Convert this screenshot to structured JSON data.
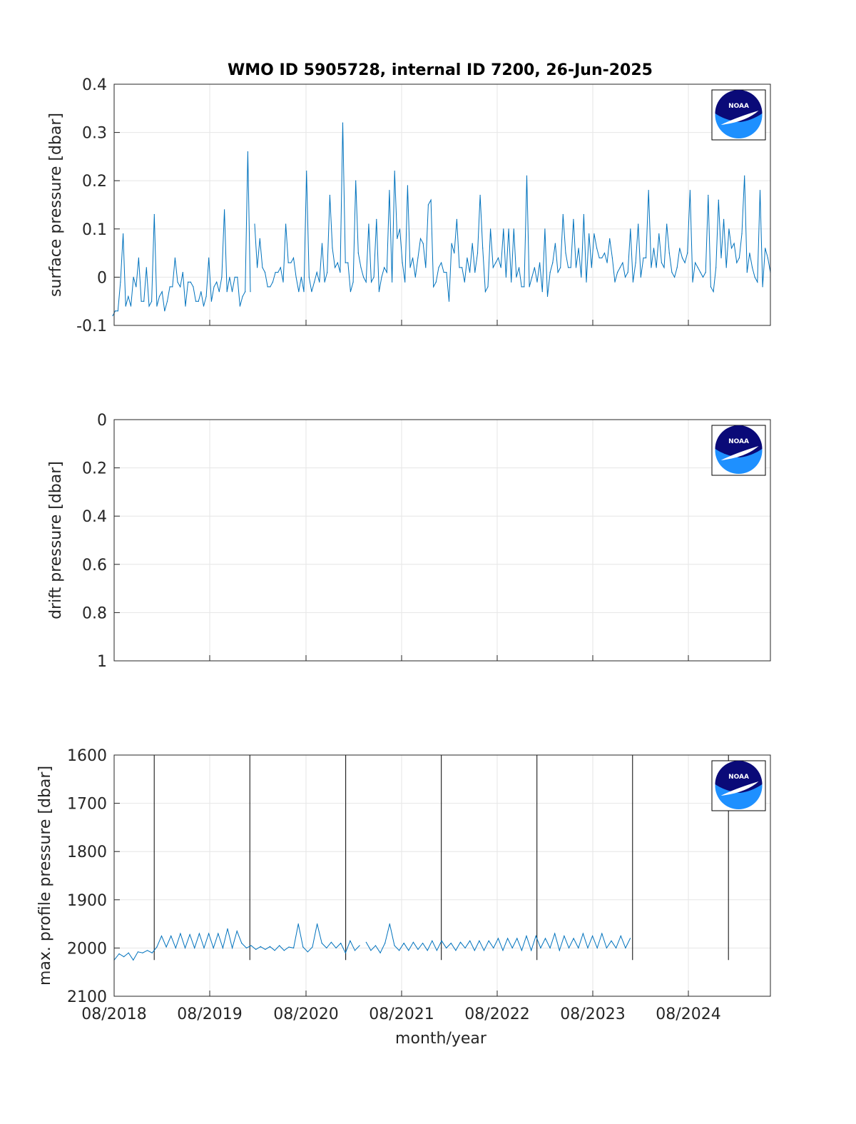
{
  "title": "WMO ID 5905728, internal ID 7200, 26-Jun-2025",
  "logo_text": "NOAA",
  "colors": {
    "series": "#0072BD",
    "axis": "#262626",
    "grid": "#e6e6e6",
    "vline": "#000000",
    "noaa_dark": "#0a0a78",
    "noaa_light": "#1e90ff"
  },
  "chart_data": [
    {
      "type": "line",
      "ylabel": "surface pressure [dbar]",
      "ylim": [
        -0.1,
        0.4
      ],
      "y_ticks": [
        "-0.1",
        "0",
        "0.1",
        "0.2",
        "0.3",
        "0.4"
      ],
      "y_tick_values": [
        -0.1,
        0,
        0.1,
        0.2,
        0.3,
        0.4
      ],
      "grid": true,
      "series": [
        {
          "segments": [
            [
              -0.08,
              -0.07,
              -0.07,
              -0.01,
              0.09,
              -0.06,
              -0.04,
              -0.06,
              0.0,
              -0.02,
              0.04,
              -0.05,
              -0.05,
              0.02,
              -0.06,
              -0.05,
              0.13,
              -0.06,
              -0.04,
              -0.03,
              -0.07,
              -0.05,
              -0.02,
              -0.02,
              0.04,
              -0.01,
              -0.02,
              0.01,
              -0.06,
              -0.01,
              -0.01,
              -0.02,
              -0.05,
              -0.05,
              -0.03,
              -0.06,
              -0.04,
              0.04,
              -0.05,
              -0.02,
              -0.01,
              -0.03,
              0.0,
              0.14,
              -0.03,
              0.0,
              -0.03,
              0.0,
              0.0,
              -0.06,
              -0.04,
              -0.03,
              0.26,
              -0.03
            ],
            [
              0.11,
              0.02,
              0.08,
              0.02,
              0.01,
              -0.02,
              -0.02,
              -0.01,
              0.01,
              0.01,
              0.02,
              -0.01,
              0.11,
              0.03,
              0.03,
              0.04,
              0.0,
              -0.03,
              0.0,
              -0.03,
              0.22,
              0.0,
              -0.03,
              -0.01,
              0.01,
              -0.01,
              0.07,
              -0.01,
              0.01,
              0.17,
              0.06,
              0.02,
              0.03,
              0.01,
              0.32,
              0.03,
              0.03,
              -0.03,
              -0.01,
              0.2,
              0.05,
              0.02,
              0.0,
              -0.01,
              0.11,
              -0.01,
              0.0,
              0.12,
              -0.03,
              0.0,
              0.02,
              0.01,
              0.18,
              -0.01,
              0.22,
              0.08,
              0.1,
              0.03,
              -0.01,
              0.19,
              0.02,
              0.04,
              0.0,
              0.04,
              0.08,
              0.07,
              0.02,
              0.15,
              0.16,
              -0.02,
              -0.01,
              0.02,
              0.03,
              0.01,
              0.01,
              -0.05,
              0.07,
              0.05,
              0.12,
              0.02,
              0.02,
              -0.01,
              0.04,
              0.01,
              0.07,
              0.01,
              0.05,
              0.17,
              0.06,
              -0.03,
              -0.02,
              0.1,
              0.02,
              0.03,
              0.04,
              0.02,
              0.1,
              0.0,
              0.1,
              -0.01,
              0.1,
              0.0,
              0.02,
              -0.02,
              -0.02,
              0.21,
              -0.02,
              0.0,
              0.02,
              -0.01,
              0.03,
              -0.03,
              0.1,
              -0.04,
              0.01,
              0.03,
              0.07,
              0.01,
              0.02,
              0.13,
              0.05,
              0.02,
              0.02,
              0.12,
              0.02,
              0.06,
              0.0,
              0.13,
              -0.01,
              0.09,
              0.02,
              0.09,
              0.06,
              0.04,
              0.04,
              0.05,
              0.03,
              0.08,
              0.04,
              -0.01,
              0.01,
              0.02,
              0.03,
              0.0,
              0.01,
              0.1,
              -0.01,
              0.03,
              0.11,
              0.0,
              0.04,
              0.04,
              0.18,
              0.02,
              0.06,
              0.02,
              0.09,
              0.03,
              0.02,
              0.11,
              0.05,
              0.01,
              0.0,
              0.02,
              0.06,
              0.04,
              0.03,
              0.05,
              0.18,
              -0.01,
              0.03,
              0.02,
              0.01,
              0.0,
              0.01,
              0.17,
              -0.02,
              -0.03,
              0.02,
              0.16,
              0.04,
              0.12,
              0.02,
              0.1,
              0.06,
              0.07,
              0.03,
              0.04,
              0.09,
              0.21,
              0.01,
              0.05,
              0.02,
              0.0,
              -0.01,
              0.18,
              -0.02,
              0.06,
              0.04,
              0.01
            ]
          ]
        }
      ]
    },
    {
      "type": "line",
      "ylabel": "drift pressure [dbar]",
      "ylim": [
        0,
        1
      ],
      "y_reversed": true,
      "y_ticks": [
        "0",
        "0.2",
        "0.4",
        "0.6",
        "0.8",
        "1"
      ],
      "y_tick_values": [
        0,
        0.2,
        0.4,
        0.6,
        0.8,
        1
      ],
      "grid": true,
      "series": []
    },
    {
      "type": "line",
      "ylabel": "max. profile pressure [dbar]",
      "xlabel": "month/year",
      "ylim": [
        1600,
        2100
      ],
      "y_reversed": true,
      "y_ticks": [
        "1600",
        "1700",
        "1800",
        "1900",
        "2000",
        "2100"
      ],
      "y_tick_values": [
        1600,
        1700,
        1800,
        1900,
        2000,
        2100
      ],
      "x_ticks": [
        "08/2018",
        "08/2019",
        "08/2020",
        "08/2021",
        "08/2022",
        "08/2023",
        "08/2024"
      ],
      "grid": true,
      "year_boundaries": [
        "01/2019",
        "01/2020",
        "01/2021",
        "01/2022",
        "01/2023",
        "01/2024",
        "01/2025"
      ],
      "series": [
        {
          "segments": [
            [
              {
                "x": "2018-08-01",
                "y": 2025
              },
              {
                "x": "2018-08-20",
                "y": 2012
              },
              {
                "x": "2018-09-07",
                "y": 2018
              },
              {
                "x": "2018-09-25",
                "y": 2010
              },
              {
                "x": "2018-10-13",
                "y": 2025
              },
              {
                "x": "2018-10-31",
                "y": 2008
              },
              {
                "x": "2018-11-18",
                "y": 2010
              },
              {
                "x": "2018-12-06",
                "y": 2005
              },
              {
                "x": "2018-12-24",
                "y": 2010
              },
              {
                "x": "2019-01-11",
                "y": 1998
              },
              {
                "x": "2019-01-29",
                "y": 1975
              },
              {
                "x": "2019-02-16",
                "y": 1998
              },
              {
                "x": "2019-03-06",
                "y": 1975
              },
              {
                "x": "2019-03-24",
                "y": 2000
              },
              {
                "x": "2019-04-11",
                "y": 1970
              },
              {
                "x": "2019-04-29",
                "y": 2000
              },
              {
                "x": "2019-05-17",
                "y": 1972
              },
              {
                "x": "2019-06-04",
                "y": 2000
              },
              {
                "x": "2019-06-22",
                "y": 1970
              },
              {
                "x": "2019-07-10",
                "y": 2000
              },
              {
                "x": "2019-07-28",
                "y": 1970
              },
              {
                "x": "2019-08-15",
                "y": 2000
              },
              {
                "x": "2019-09-02",
                "y": 1970
              },
              {
                "x": "2019-09-20",
                "y": 2000
              },
              {
                "x": "2019-10-08",
                "y": 1960
              },
              {
                "x": "2019-10-26",
                "y": 2000
              },
              {
                "x": "2019-11-13",
                "y": 1965
              },
              {
                "x": "2019-12-01",
                "y": 1990
              },
              {
                "x": "2019-12-19",
                "y": 2000
              },
              {
                "x": "2020-01-06",
                "y": 1995
              },
              {
                "x": "2020-01-24",
                "y": 2003
              },
              {
                "x": "2020-02-11",
                "y": 1997
              },
              {
                "x": "2020-02-29",
                "y": 2003
              },
              {
                "x": "2020-03-18",
                "y": 1997
              },
              {
                "x": "2020-04-05",
                "y": 2005
              },
              {
                "x": "2020-04-23",
                "y": 1995
              },
              {
                "x": "2020-05-11",
                "y": 2005
              },
              {
                "x": "2020-05-29",
                "y": 1998
              },
              {
                "x": "2020-06-16",
                "y": 2000
              },
              {
                "x": "2020-07-04",
                "y": 1950
              },
              {
                "x": "2020-07-22",
                "y": 1998
              },
              {
                "x": "2020-08-09",
                "y": 2008
              },
              {
                "x": "2020-08-27",
                "y": 1998
              },
              {
                "x": "2020-09-14",
                "y": 1950
              },
              {
                "x": "2020-10-02",
                "y": 1990
              },
              {
                "x": "2020-10-20",
                "y": 2000
              },
              {
                "x": "2020-11-07",
                "y": 1988
              },
              {
                "x": "2020-11-25",
                "y": 2000
              },
              {
                "x": "2020-12-13",
                "y": 1990
              },
              {
                "x": "2020-12-31",
                "y": 2010
              },
              {
                "x": "2021-01-18",
                "y": 1985
              },
              {
                "x": "2021-02-05",
                "y": 2005
              },
              {
                "x": "2021-02-23",
                "y": 1995
              }
            ],
            [
              {
                "x": "2021-03-20",
                "y": 1988
              },
              {
                "x": "2021-04-07",
                "y": 2005
              },
              {
                "x": "2021-04-25",
                "y": 1995
              },
              {
                "x": "2021-05-13",
                "y": 2010
              },
              {
                "x": "2021-05-31",
                "y": 1990
              },
              {
                "x": "2021-06-18",
                "y": 1950
              },
              {
                "x": "2021-07-06",
                "y": 1995
              },
              {
                "x": "2021-07-24",
                "y": 2005
              },
              {
                "x": "2021-08-11",
                "y": 1990
              },
              {
                "x": "2021-08-29",
                "y": 2005
              },
              {
                "x": "2021-09-16",
                "y": 1988
              },
              {
                "x": "2021-10-04",
                "y": 2003
              },
              {
                "x": "2021-10-22",
                "y": 1990
              },
              {
                "x": "2021-11-09",
                "y": 2005
              },
              {
                "x": "2021-11-27",
                "y": 1985
              },
              {
                "x": "2021-12-15",
                "y": 2005
              },
              {
                "x": "2022-01-02",
                "y": 1985
              },
              {
                "x": "2022-01-20",
                "y": 2000
              },
              {
                "x": "2022-02-07",
                "y": 1990
              },
              {
                "x": "2022-02-25",
                "y": 2005
              },
              {
                "x": "2022-03-15",
                "y": 1988
              },
              {
                "x": "2022-04-02",
                "y": 2000
              },
              {
                "x": "2022-04-20",
                "y": 1985
              },
              {
                "x": "2022-05-08",
                "y": 2005
              },
              {
                "x": "2022-05-26",
                "y": 1985
              },
              {
                "x": "2022-06-13",
                "y": 2005
              },
              {
                "x": "2022-07-01",
                "y": 1985
              },
              {
                "x": "2022-07-19",
                "y": 2000
              },
              {
                "x": "2022-08-06",
                "y": 1980
              },
              {
                "x": "2022-08-24",
                "y": 2005
              },
              {
                "x": "2022-09-11",
                "y": 1980
              },
              {
                "x": "2022-09-29",
                "y": 2000
              },
              {
                "x": "2022-10-17",
                "y": 1980
              },
              {
                "x": "2022-11-04",
                "y": 2005
              },
              {
                "x": "2022-11-22",
                "y": 1975
              },
              {
                "x": "2022-12-10",
                "y": 2005
              },
              {
                "x": "2022-12-28",
                "y": 1975
              },
              {
                "x": "2023-01-15",
                "y": 2000
              },
              {
                "x": "2023-02-02",
                "y": 1980
              },
              {
                "x": "2023-02-20",
                "y": 2000
              },
              {
                "x": "2023-03-10",
                "y": 1970
              },
              {
                "x": "2023-03-28",
                "y": 2005
              },
              {
                "x": "2023-04-15",
                "y": 1975
              },
              {
                "x": "2023-05-03",
                "y": 2000
              },
              {
                "x": "2023-05-21",
                "y": 1980
              },
              {
                "x": "2023-06-08",
                "y": 2000
              },
              {
                "x": "2023-06-26",
                "y": 1970
              },
              {
                "x": "2023-07-14",
                "y": 2000
              },
              {
                "x": "2023-08-01",
                "y": 1975
              },
              {
                "x": "2023-08-19",
                "y": 2000
              },
              {
                "x": "2023-09-06",
                "y": 1970
              },
              {
                "x": "2023-09-24",
                "y": 2000
              },
              {
                "x": "2023-10-12",
                "y": 1985
              },
              {
                "x": "2023-10-30",
                "y": 2000
              },
              {
                "x": "2023-11-17",
                "y": 1975
              },
              {
                "x": "2023-12-05",
                "y": 2000
              },
              {
                "x": "2023-12-23",
                "y": 1980
              }
            ]
          ]
        }
      ]
    }
  ]
}
